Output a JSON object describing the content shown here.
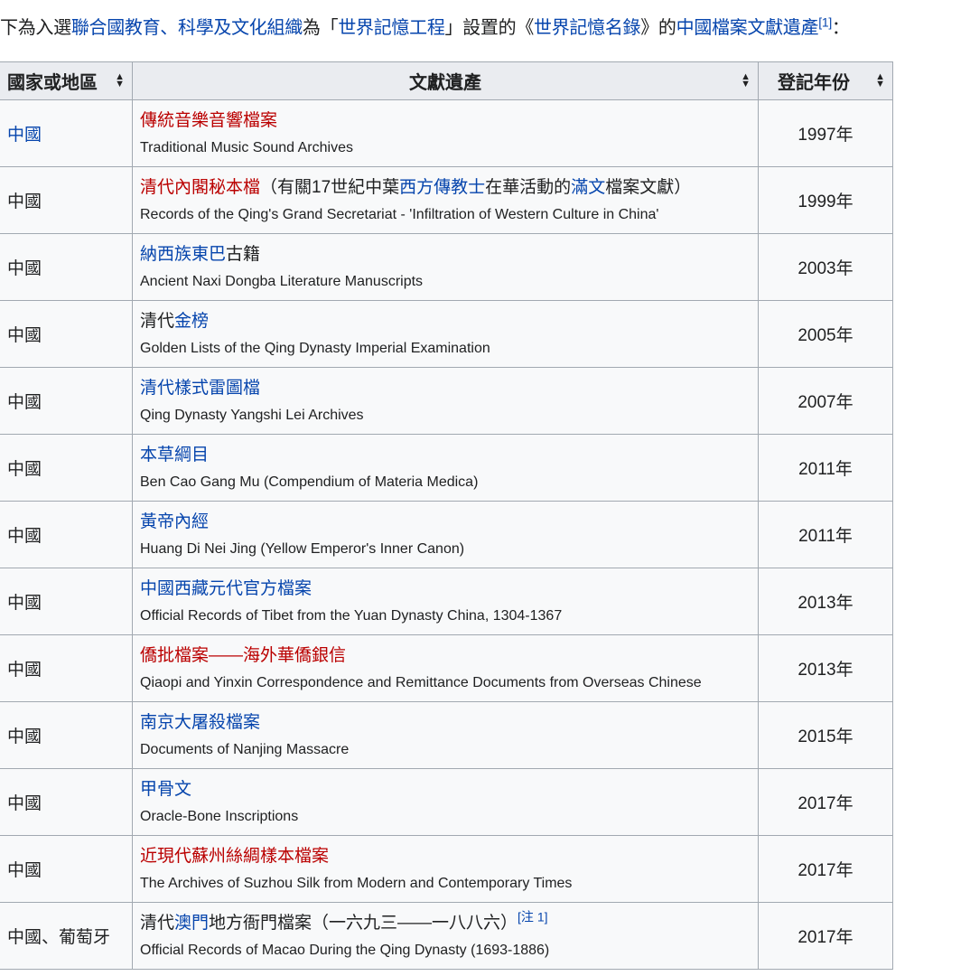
{
  "intro": {
    "segments": [
      {
        "text": "下為入選",
        "type": "plain"
      },
      {
        "text": "聯合國教育、科學及文化組織",
        "type": "link"
      },
      {
        "text": "為「",
        "type": "plain"
      },
      {
        "text": "世界記憶工程",
        "type": "link"
      },
      {
        "text": "」設置的《",
        "type": "plain"
      },
      {
        "text": "世界記憶名錄",
        "type": "link"
      },
      {
        "text": "》的",
        "type": "plain"
      },
      {
        "text": "中國檔案文獻遺產",
        "type": "link"
      },
      {
        "text": "[1]",
        "type": "sup"
      },
      {
        "text": "：",
        "type": "plain"
      }
    ]
  },
  "table": {
    "headers": [
      "國家或地區",
      "文獻遺產",
      "登記年份"
    ],
    "rows": [
      {
        "country": [
          {
            "text": "中國",
            "type": "link"
          }
        ],
        "title": [
          {
            "text": "傳統音樂音響檔案",
            "type": "new"
          }
        ],
        "english": "Traditional Music Sound Archives",
        "year": "1997年"
      },
      {
        "country": [
          {
            "text": "中國",
            "type": "plain"
          }
        ],
        "title": [
          {
            "text": "清代內閣秘本檔",
            "type": "new"
          },
          {
            "text": "（有關17世紀中葉",
            "type": "plain"
          },
          {
            "text": "西方傳教士",
            "type": "link"
          },
          {
            "text": "在華活動的",
            "type": "plain"
          },
          {
            "text": "滿文",
            "type": "link"
          },
          {
            "text": "檔案文獻）",
            "type": "plain"
          }
        ],
        "english": "Records of the Qing's Grand Secretariat - 'Infiltration of Western Culture in China'",
        "year": "1999年"
      },
      {
        "country": [
          {
            "text": "中國",
            "type": "plain"
          }
        ],
        "title": [
          {
            "text": "納西族東巴",
            "type": "link"
          },
          {
            "text": "古籍",
            "type": "plain"
          }
        ],
        "english": "Ancient Naxi Dongba Literature Manuscripts",
        "year": "2003年"
      },
      {
        "country": [
          {
            "text": "中國",
            "type": "plain"
          }
        ],
        "title": [
          {
            "text": "清代",
            "type": "plain"
          },
          {
            "text": "金榜",
            "type": "link"
          }
        ],
        "english": "Golden Lists of the Qing Dynasty Imperial Examination",
        "year": "2005年"
      },
      {
        "country": [
          {
            "text": "中國",
            "type": "plain"
          }
        ],
        "title": [
          {
            "text": "清代樣式雷圖檔",
            "type": "link"
          }
        ],
        "english": "Qing Dynasty Yangshi Lei Archives",
        "year": "2007年"
      },
      {
        "country": [
          {
            "text": "中國",
            "type": "plain"
          }
        ],
        "title": [
          {
            "text": "本草綱目",
            "type": "link"
          }
        ],
        "english": "Ben Cao Gang Mu (Compendium of Materia Medica)",
        "year": "2011年"
      },
      {
        "country": [
          {
            "text": "中國",
            "type": "plain"
          }
        ],
        "title": [
          {
            "text": "黃帝內經",
            "type": "link"
          }
        ],
        "english": "Huang Di Nei Jing (Yellow Emperor's Inner Canon)",
        "year": "2011年"
      },
      {
        "country": [
          {
            "text": "中國",
            "type": "plain"
          }
        ],
        "title": [
          {
            "text": "中國西藏元代官方檔案",
            "type": "link"
          }
        ],
        "english": "Official Records of Tibet from the Yuan Dynasty China, 1304-1367",
        "year": "2013年"
      },
      {
        "country": [
          {
            "text": "中國",
            "type": "plain"
          }
        ],
        "title": [
          {
            "text": "僑批檔案——海外華僑銀信",
            "type": "new"
          }
        ],
        "english": "Qiaopi and Yinxin Correspondence and Remittance Documents from Overseas Chinese",
        "year": "2013年"
      },
      {
        "country": [
          {
            "text": "中國",
            "type": "plain"
          }
        ],
        "title": [
          {
            "text": "南京大屠殺檔案",
            "type": "link"
          }
        ],
        "english": "Documents of Nanjing Massacre",
        "year": "2015年"
      },
      {
        "country": [
          {
            "text": "中國",
            "type": "plain"
          }
        ],
        "title": [
          {
            "text": "甲骨文",
            "type": "link"
          }
        ],
        "english": "Oracle-Bone Inscriptions",
        "year": "2017年"
      },
      {
        "country": [
          {
            "text": "中國",
            "type": "plain"
          }
        ],
        "title": [
          {
            "text": "近現代蘇州絲綢樣本檔案",
            "type": "new"
          }
        ],
        "english": "The Archives of Suzhou Silk from Modern and Contemporary Times",
        "year": "2017年"
      },
      {
        "country": [
          {
            "text": "中國、葡萄牙",
            "type": "plain"
          }
        ],
        "title": [
          {
            "text": "清代",
            "type": "plain"
          },
          {
            "text": "澳門",
            "type": "link"
          },
          {
            "text": "地方衙門檔案（一六九三——一八八六）",
            "type": "plain"
          },
          {
            "text": "[注 1]",
            "type": "sup"
          }
        ],
        "english": "Official Records of Macao During the Qing Dynasty (1693-1886)",
        "year": "2017年"
      }
    ]
  },
  "colors": {
    "link": "#0645ad",
    "new_link": "#ba0000",
    "header_bg": "#eaecf0",
    "cell_bg": "#f8f9fa",
    "border": "#a2a9b1"
  }
}
